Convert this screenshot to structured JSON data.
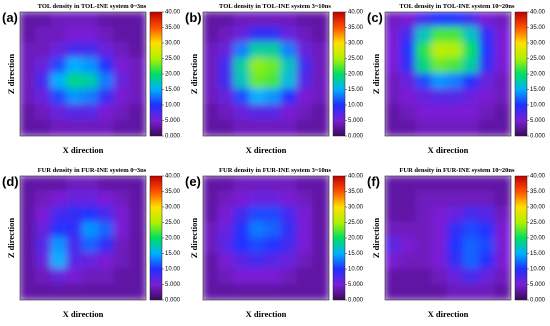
{
  "chart_data": [
    {
      "type": "heatmap",
      "panel_label": "(a)",
      "title": "TOL density in TOL-INE system 0~3ns",
      "xlabel": "X direction",
      "ylabel": "Z direction",
      "values": [
        [
          3,
          3,
          4,
          4,
          4,
          3,
          3,
          3
        ],
        [
          3,
          4,
          4,
          5,
          5,
          4,
          3,
          3
        ],
        [
          4,
          4,
          6,
          8,
          8,
          6,
          4,
          3
        ],
        [
          4,
          6,
          11,
          15,
          14,
          10,
          5,
          4
        ],
        [
          4,
          8,
          15,
          19,
          18,
          13,
          6,
          4
        ],
        [
          4,
          6,
          11,
          14,
          13,
          9,
          5,
          4
        ],
        [
          3,
          4,
          6,
          7,
          7,
          5,
          4,
          3
        ],
        [
          3,
          3,
          4,
          4,
          4,
          4,
          3,
          3
        ]
      ],
      "clim": [
        0,
        40
      ],
      "cticks": [
        {
          "value": 40,
          "label": "40.00"
        },
        {
          "value": 35,
          "label": "35.00"
        },
        {
          "value": 30,
          "label": "30.00"
        },
        {
          "value": 25,
          "label": "25.00"
        },
        {
          "value": 20,
          "label": "20.00"
        },
        {
          "value": 15,
          "label": "15.00"
        },
        {
          "value": 10,
          "label": "10.00"
        },
        {
          "value": 5,
          "label": "5.000"
        },
        {
          "value": 0,
          "label": "0.000"
        }
      ],
      "colormap": [
        "#3c0a5a",
        "#7a1fd6",
        "#2030ff",
        "#00b0ff",
        "#00e060",
        "#b0f000",
        "#ffe000",
        "#ff5000",
        "#c00000"
      ]
    },
    {
      "type": "heatmap",
      "panel_label": "(b)",
      "title": "TOL density in TOL-INE system 3~10ns",
      "xlabel": "X direction",
      "ylabel": "Z direction",
      "values": [
        [
          3,
          3,
          4,
          4,
          4,
          4,
          3,
          3
        ],
        [
          3,
          4,
          6,
          9,
          9,
          6,
          4,
          3
        ],
        [
          4,
          6,
          13,
          18,
          18,
          13,
          6,
          4
        ],
        [
          4,
          8,
          18,
          24,
          23,
          17,
          8,
          4
        ],
        [
          4,
          8,
          17,
          23,
          22,
          16,
          7,
          4
        ],
        [
          4,
          6,
          11,
          15,
          14,
          10,
          5,
          4
        ],
        [
          3,
          4,
          6,
          7,
          7,
          5,
          4,
          3
        ],
        [
          3,
          3,
          4,
          4,
          4,
          4,
          3,
          3
        ]
      ],
      "clim": [
        0,
        40
      ],
      "cticks": [
        {
          "value": 40,
          "label": "40.00"
        },
        {
          "value": 35,
          "label": "35.00"
        },
        {
          "value": 30,
          "label": "30.00"
        },
        {
          "value": 25,
          "label": "25.00"
        },
        {
          "value": 20,
          "label": "20.00"
        },
        {
          "value": 15,
          "label": "15.00"
        },
        {
          "value": 10,
          "label": "10.00"
        },
        {
          "value": 5,
          "label": "5.000"
        },
        {
          "value": 0,
          "label": "0.000"
        }
      ],
      "colormap": [
        "#3c0a5a",
        "#7a1fd6",
        "#2030ff",
        "#00b0ff",
        "#00e060",
        "#b0f000",
        "#ffe000",
        "#ff5000",
        "#c00000"
      ]
    },
    {
      "type": "heatmap",
      "panel_label": "(c)",
      "title": "TOL density in TOL-INE system 10~20ns",
      "xlabel": "X direction",
      "ylabel": "Z direction",
      "values": [
        [
          4,
          5,
          8,
          10,
          10,
          8,
          5,
          4
        ],
        [
          5,
          8,
          17,
          22,
          22,
          17,
          9,
          5
        ],
        [
          5,
          10,
          21,
          26,
          25,
          20,
          10,
          5
        ],
        [
          5,
          9,
          19,
          23,
          22,
          18,
          9,
          5
        ],
        [
          4,
          6,
          11,
          14,
          13,
          10,
          6,
          4
        ],
        [
          4,
          5,
          6,
          7,
          7,
          6,
          5,
          4
        ],
        [
          3,
          4,
          5,
          5,
          5,
          5,
          4,
          3
        ],
        [
          3,
          3,
          4,
          4,
          4,
          4,
          3,
          3
        ]
      ],
      "clim": [
        0,
        40
      ],
      "cticks": [
        {
          "value": 40,
          "label": "40.00"
        },
        {
          "value": 35,
          "label": "35.00"
        },
        {
          "value": 30,
          "label": "30.00"
        },
        {
          "value": 25,
          "label": "25.00"
        },
        {
          "value": 20,
          "label": "20.00"
        },
        {
          "value": 15,
          "label": "15.00"
        },
        {
          "value": 10,
          "label": "10.00"
        },
        {
          "value": 5,
          "label": "5.000"
        },
        {
          "value": 0,
          "label": "0.000"
        }
      ],
      "colormap": [
        "#3c0a5a",
        "#7a1fd6",
        "#2030ff",
        "#00b0ff",
        "#00e060",
        "#b0f000",
        "#ffe000",
        "#ff5000",
        "#c00000"
      ]
    },
    {
      "type": "heatmap",
      "panel_label": "(d)",
      "title": "FUR density in FUR-INE system 0~3ns",
      "xlabel": "X direction",
      "ylabel": "Z direction",
      "values": [
        [
          3,
          3,
          3,
          4,
          4,
          3,
          3,
          3
        ],
        [
          3,
          4,
          5,
          6,
          6,
          5,
          4,
          3
        ],
        [
          3,
          5,
          8,
          9,
          10,
          8,
          5,
          3
        ],
        [
          3,
          6,
          10,
          9,
          14,
          12,
          5,
          3
        ],
        [
          3,
          7,
          14,
          8,
          12,
          9,
          4,
          3
        ],
        [
          3,
          6,
          15,
          7,
          6,
          5,
          4,
          3
        ],
        [
          3,
          4,
          6,
          5,
          4,
          4,
          3,
          3
        ],
        [
          3,
          3,
          3,
          3,
          3,
          3,
          3,
          3
        ]
      ],
      "clim": [
        0,
        40
      ],
      "cticks": [
        {
          "value": 40,
          "label": "40.00"
        },
        {
          "value": 35,
          "label": "35.00"
        },
        {
          "value": 30,
          "label": "30.00"
        },
        {
          "value": 25,
          "label": "25.00"
        },
        {
          "value": 20,
          "label": "20.00"
        },
        {
          "value": 15,
          "label": "15.00"
        },
        {
          "value": 10,
          "label": "10.00"
        },
        {
          "value": 5,
          "label": "5.000"
        },
        {
          "value": 0,
          "label": "0.000"
        }
      ],
      "colormap": [
        "#3c0a5a",
        "#7a1fd6",
        "#2030ff",
        "#00b0ff",
        "#00e060",
        "#b0f000",
        "#ffe000",
        "#ff5000",
        "#c00000"
      ]
    },
    {
      "type": "heatmap",
      "panel_label": "(e)",
      "title": "FUR density in FUR-INE system 3~10ns",
      "xlabel": "X direction",
      "ylabel": "Z direction",
      "values": [
        [
          3,
          3,
          4,
          4,
          4,
          4,
          3,
          3
        ],
        [
          3,
          4,
          5,
          6,
          6,
          5,
          4,
          3
        ],
        [
          3,
          5,
          8,
          11,
          11,
          8,
          5,
          3
        ],
        [
          4,
          6,
          10,
          13,
          12,
          9,
          5,
          3
        ],
        [
          4,
          7,
          10,
          11,
          10,
          8,
          5,
          3
        ],
        [
          3,
          5,
          7,
          8,
          7,
          6,
          4,
          3
        ],
        [
          3,
          4,
          5,
          5,
          5,
          4,
          3,
          3
        ],
        [
          3,
          3,
          3,
          3,
          3,
          3,
          3,
          3
        ]
      ],
      "clim": [
        0,
        40
      ],
      "cticks": [
        {
          "value": 40,
          "label": "40.00"
        },
        {
          "value": 35,
          "label": "35.00"
        },
        {
          "value": 30,
          "label": "30.00"
        },
        {
          "value": 25,
          "label": "25.00"
        },
        {
          "value": 20,
          "label": "20.00"
        },
        {
          "value": 15,
          "label": "15.00"
        },
        {
          "value": 10,
          "label": "10.00"
        },
        {
          "value": 5,
          "label": "5.000"
        },
        {
          "value": 0,
          "label": "0.000"
        }
      ],
      "colormap": [
        "#3c0a5a",
        "#7a1fd6",
        "#2030ff",
        "#00b0ff",
        "#00e060",
        "#b0f000",
        "#ffe000",
        "#ff5000",
        "#c00000"
      ]
    },
    {
      "type": "heatmap",
      "panel_label": "(f)",
      "title": "FUR density in FUR-INE system 10~20ns",
      "xlabel": "X direction",
      "ylabel": "Z direction",
      "values": [
        [
          3,
          3,
          3,
          3,
          3,
          3,
          3,
          3
        ],
        [
          3,
          3,
          4,
          4,
          4,
          4,
          4,
          3
        ],
        [
          3,
          3,
          4,
          5,
          6,
          8,
          7,
          4
        ],
        [
          4,
          4,
          4,
          5,
          9,
          11,
          10,
          5
        ],
        [
          7,
          5,
          4,
          5,
          10,
          12,
          11,
          5
        ],
        [
          5,
          4,
          4,
          5,
          9,
          12,
          10,
          5
        ],
        [
          3,
          3,
          3,
          4,
          6,
          8,
          6,
          4
        ],
        [
          3,
          3,
          3,
          3,
          4,
          4,
          4,
          3
        ]
      ],
      "clim": [
        0,
        40
      ],
      "cticks": [
        {
          "value": 40,
          "label": "40.00"
        },
        {
          "value": 35,
          "label": "35.00"
        },
        {
          "value": 30,
          "label": "30.00"
        },
        {
          "value": 25,
          "label": "25.00"
        },
        {
          "value": 20,
          "label": "20.00"
        },
        {
          "value": 15,
          "label": "15.00"
        },
        {
          "value": 10,
          "label": "10.00"
        },
        {
          "value": 5,
          "label": "5.000"
        },
        {
          "value": 0,
          "label": "0.000"
        }
      ],
      "colormap": [
        "#3c0a5a",
        "#7a1fd6",
        "#2030ff",
        "#00b0ff",
        "#00e060",
        "#b0f000",
        "#ffe000",
        "#ff5000",
        "#c00000"
      ]
    }
  ]
}
